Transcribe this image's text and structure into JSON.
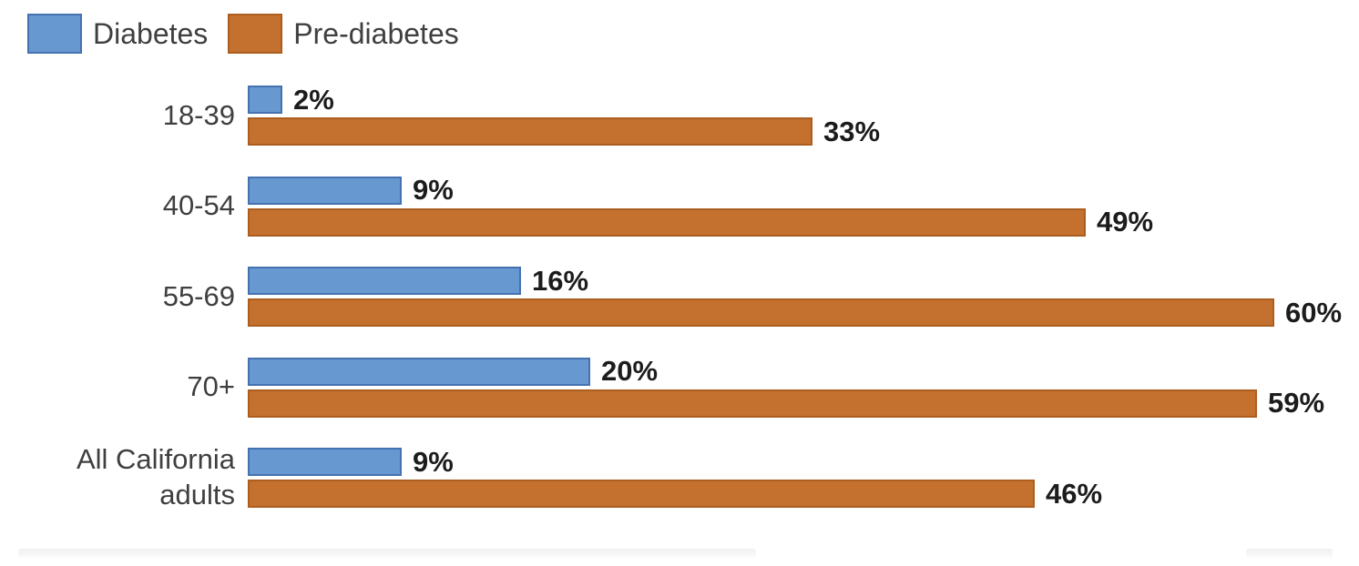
{
  "chart_data": {
    "type": "bar",
    "orientation": "horizontal",
    "title": "",
    "xlabel": "",
    "ylabel": "",
    "categories": [
      "18-39",
      "40-54",
      "55-69",
      "70+",
      "All California adults"
    ],
    "series": [
      {
        "name": "Diabetes",
        "values": [
          2,
          9,
          16,
          20,
          9
        ],
        "labels": [
          "2%",
          "9%",
          "16%",
          "20%",
          "9%"
        ],
        "fill_color": "#6898d0",
        "border_color": "#4472b0"
      },
      {
        "name": "Pre-diabetes",
        "values": [
          33,
          49,
          60,
          59,
          46
        ],
        "labels": [
          "33%",
          "49%",
          "60%",
          "59%",
          "46%"
        ],
        "fill_color": "#c4712f",
        "border_color": "#ac5e20"
      }
    ],
    "value_suffix": "%",
    "xlim": [
      0,
      62
    ],
    "grid": false,
    "legend_position": "top-left",
    "axis_ticks_visible": false
  },
  "colors": {
    "background": "#ffffff",
    "category_label": "#3f3f3f",
    "value_label": "#1c1c1c"
  }
}
